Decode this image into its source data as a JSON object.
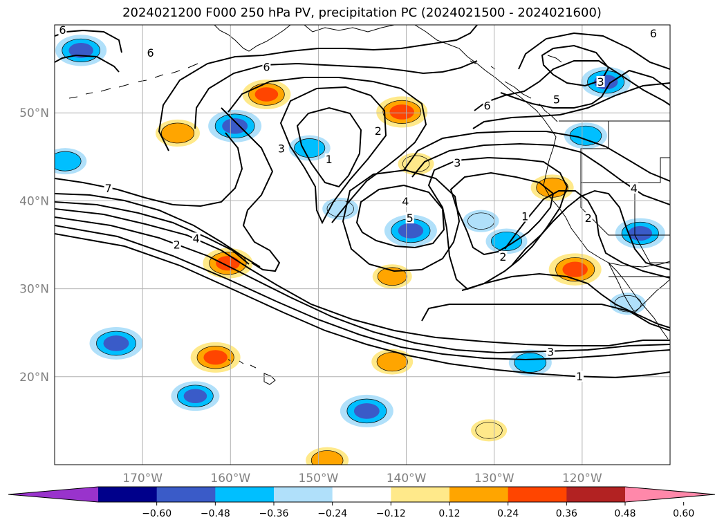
{
  "title": "2024021200 F000 250 hPa PV, precipitation PC (2024021500 - 2024021600)",
  "chart_data": {
    "type": "map",
    "projection": "equirectangular",
    "lon_range": [
      -180,
      -110
    ],
    "lat_range": [
      10,
      60
    ],
    "grid": true,
    "lon_ticks": [
      {
        "value": -170,
        "label": "170°W"
      },
      {
        "value": -160,
        "label": "160°W"
      },
      {
        "value": -150,
        "label": "150°W"
      },
      {
        "value": -140,
        "label": "140°W"
      },
      {
        "value": -130,
        "label": "130°W"
      },
      {
        "value": -120,
        "label": "120°W"
      }
    ],
    "lat_ticks": [
      {
        "value": 50,
        "label": "50°N"
      },
      {
        "value": 40,
        "label": "40°N"
      },
      {
        "value": 30,
        "label": "30°N"
      },
      {
        "value": 20,
        "label": "20°N"
      }
    ],
    "pv_contours": {
      "color": "#000000",
      "labels": [
        {
          "text": "6",
          "lon": -179.1,
          "lat": 59.3
        },
        {
          "text": "6",
          "lon": -169.1,
          "lat": 56.7
        },
        {
          "text": "6",
          "lon": -155.9,
          "lat": 55.1
        },
        {
          "text": "6",
          "lon": -111.9,
          "lat": 58.9
        },
        {
          "text": "5",
          "lon": -122.9,
          "lat": 51.4
        },
        {
          "text": "3",
          "lon": -117.9,
          "lat": 53.4
        },
        {
          "text": "6",
          "lon": -130.8,
          "lat": 50.7
        },
        {
          "text": "3",
          "lon": -154.2,
          "lat": 45.8
        },
        {
          "text": "1",
          "lon": -148.8,
          "lat": 44.6
        },
        {
          "text": "2",
          "lon": -143.2,
          "lat": 47.8
        },
        {
          "text": "3",
          "lon": -134.2,
          "lat": 44.2
        },
        {
          "text": "7",
          "lon": -173.9,
          "lat": 41.3
        },
        {
          "text": "4",
          "lon": -140.1,
          "lat": 39.8
        },
        {
          "text": "5",
          "lon": -139.6,
          "lat": 37.9
        },
        {
          "text": "4",
          "lon": -114.1,
          "lat": 41.3
        },
        {
          "text": "1",
          "lon": -126.5,
          "lat": 38.1
        },
        {
          "text": "2",
          "lon": -119.3,
          "lat": 37.9
        },
        {
          "text": "4",
          "lon": -163.9,
          "lat": 35.6
        },
        {
          "text": "2",
          "lon": -166.1,
          "lat": 34.9
        },
        {
          "text": "2",
          "lon": -129.0,
          "lat": 33.5
        },
        {
          "text": "3",
          "lon": -123.6,
          "lat": 22.7
        },
        {
          "text": "1",
          "lon": -120.3,
          "lat": 19.9
        }
      ]
    },
    "precip_pc": {
      "colorbar": {
        "levels": [
          -0.6,
          -0.48,
          -0.36,
          -0.24,
          -0.12,
          0.12,
          0.24,
          0.36,
          0.48,
          0.6
        ],
        "tick_labels": [
          "−0.60",
          "−0.48",
          "−0.36",
          "−0.24",
          "−0.12",
          "0.12",
          "0.24",
          "0.36",
          "0.48",
          "0.60"
        ],
        "colors": [
          "#9933cc",
          "#00008b",
          "#3a5bc8",
          "#00bfff",
          "#b0e0fa",
          "#ffffff",
          "#ffe98a",
          "#ffa500",
          "#ff4500",
          "#b22222",
          "#ff88aa"
        ],
        "extend": "both"
      },
      "blobs": [
        {
          "lon": -177.0,
          "lat": 57.1,
          "value": -0.42
        },
        {
          "lon": -166.0,
          "lat": 47.7,
          "value": 0.32
        },
        {
          "lon": -159.5,
          "lat": 48.5,
          "value": -0.45
        },
        {
          "lon": -178.8,
          "lat": 44.5,
          "value": -0.3
        },
        {
          "lon": -155.9,
          "lat": 52.1,
          "value": 0.38
        },
        {
          "lon": -151.0,
          "lat": 46.0,
          "value": -0.28
        },
        {
          "lon": -140.5,
          "lat": 50.1,
          "value": 0.42
        },
        {
          "lon": -139.5,
          "lat": 36.6,
          "value": -0.44
        },
        {
          "lon": -138.9,
          "lat": 44.2,
          "value": 0.2
        },
        {
          "lon": -160.3,
          "lat": 32.9,
          "value": 0.4
        },
        {
          "lon": -141.6,
          "lat": 31.4,
          "value": 0.25
        },
        {
          "lon": -131.5,
          "lat": 37.7,
          "value": -0.2
        },
        {
          "lon": -128.6,
          "lat": 35.4,
          "value": -0.28
        },
        {
          "lon": -120.8,
          "lat": 32.2,
          "value": 0.44
        },
        {
          "lon": -123.4,
          "lat": 41.5,
          "value": 0.3
        },
        {
          "lon": -117.3,
          "lat": 53.5,
          "value": -0.4
        },
        {
          "lon": -119.6,
          "lat": 47.4,
          "value": -0.3
        },
        {
          "lon": -113.4,
          "lat": 36.3,
          "value": -0.4
        },
        {
          "lon": -114.8,
          "lat": 28.3,
          "value": -0.2
        },
        {
          "lon": -173.0,
          "lat": 23.8,
          "value": -0.45
        },
        {
          "lon": -161.7,
          "lat": 22.2,
          "value": 0.4
        },
        {
          "lon": -164.0,
          "lat": 17.8,
          "value": -0.38
        },
        {
          "lon": -141.6,
          "lat": 21.7,
          "value": 0.28
        },
        {
          "lon": -125.9,
          "lat": 21.6,
          "value": -0.3
        },
        {
          "lon": -144.5,
          "lat": 16.1,
          "value": -0.45
        },
        {
          "lon": -130.6,
          "lat": 13.9,
          "value": 0.2
        },
        {
          "lon": -149.0,
          "lat": 10.5,
          "value": 0.3
        },
        {
          "lon": -147.5,
          "lat": 39.1,
          "value": -0.2
        }
      ]
    }
  }
}
